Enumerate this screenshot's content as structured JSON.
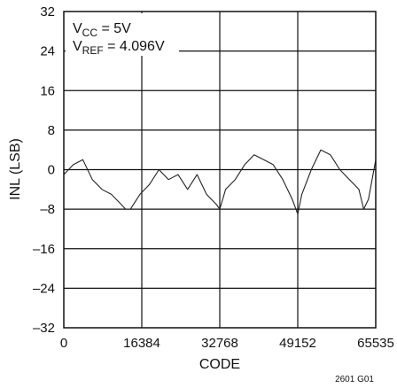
{
  "chart_data": {
    "type": "line",
    "xlabel": "CODE",
    "ylabel": "INL (LSB)",
    "xlim": [
      0,
      65535
    ],
    "ylim": [
      -32,
      32
    ],
    "x_ticks": [
      0,
      16384,
      32768,
      49152,
      65535
    ],
    "x_tick_labels": [
      "0",
      "16384",
      "32768",
      "49152",
      "65535"
    ],
    "y_ticks": [
      32,
      24,
      16,
      8,
      0,
      -8,
      -16,
      -24,
      -32
    ],
    "y_tick_labels": [
      "32",
      "24",
      "16",
      "8",
      "0",
      "–8",
      "–16",
      "–24",
      "–32"
    ],
    "grid": true,
    "legend_text": {
      "line1_main": "V",
      "line1_sub": "CC",
      "line1_rest": " = 5V",
      "line2_main": "V",
      "line2_sub": "REF",
      "line2_rest": " = 4.096V"
    },
    "series": [
      {
        "color": "#222222",
        "x": [
          0,
          2000,
          4000,
          6000,
          8000,
          10000,
          12000,
          13000,
          14000,
          16000,
          18000,
          20000,
          22000,
          24000,
          26000,
          28000,
          30000,
          32000,
          32768,
          34000,
          36000,
          38000,
          40000,
          42000,
          44000,
          46000,
          48000,
          49152,
          50000,
          52000,
          54000,
          56000,
          58000,
          60000,
          62000,
          63000,
          64000,
          65535
        ],
        "y": [
          -1,
          1,
          2,
          -2,
          -4,
          -5,
          -7,
          -8,
          -8,
          -5,
          -3,
          0,
          -2,
          -1,
          -4,
          -1,
          -5,
          -7,
          -8,
          -4,
          -2,
          1,
          3,
          2,
          1,
          -2,
          -6,
          -9,
          -5,
          0,
          4,
          3,
          0,
          -2,
          -4,
          -8,
          -6,
          2
        ]
      }
    ],
    "figure_id": "2601 G01"
  }
}
